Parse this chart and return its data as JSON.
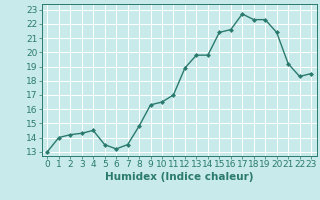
{
  "x": [
    0,
    1,
    2,
    3,
    4,
    5,
    6,
    7,
    8,
    9,
    10,
    11,
    12,
    13,
    14,
    15,
    16,
    17,
    18,
    19,
    20,
    21,
    22,
    23
  ],
  "y": [
    13.0,
    14.0,
    14.2,
    14.3,
    14.5,
    13.5,
    13.2,
    13.5,
    14.8,
    16.3,
    16.5,
    17.0,
    18.9,
    19.8,
    19.8,
    21.4,
    21.6,
    22.7,
    22.3,
    22.3,
    21.4,
    19.2,
    18.3,
    18.5
  ],
  "line_color": "#2a7a6e",
  "marker": "D",
  "markersize": 2.0,
  "linewidth": 1.0,
  "bg_color": "#c8eaea",
  "grid_color": "#ffffff",
  "xlabel": "Humidex (Indice chaleur)",
  "ylabel_ticks": [
    13,
    14,
    15,
    16,
    17,
    18,
    19,
    20,
    21,
    22,
    23
  ],
  "xlim": [
    -0.5,
    23.5
  ],
  "ylim": [
    12.7,
    23.4
  ],
  "xlabel_fontsize": 7.5,
  "tick_fontsize": 6.5,
  "tick_color": "#2a7a6e",
  "label_color": "#2a7a6e"
}
